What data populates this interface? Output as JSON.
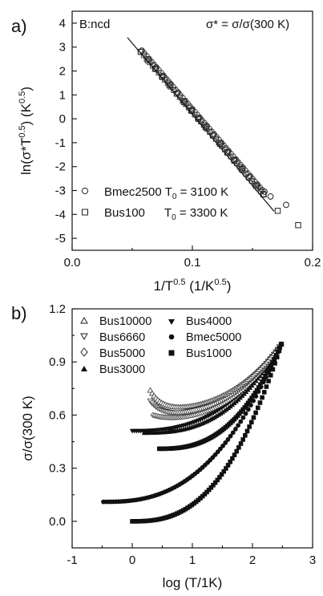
{
  "chart_data": [
    {
      "type": "scatter",
      "panel_label": "a)",
      "corner_text": "B:ncd",
      "formula_text": "σ* = σ/σ(300 K)",
      "xlabel_main": "1/T",
      "xlabel_sup": "0.5",
      "xlabel_rest": " (1/K",
      "xlabel_sup2": "0.5",
      "xlabel_end": ")",
      "ylabel_main": "ln(σ*T",
      "ylabel_sup": "0.5",
      "ylabel_rest": ") (K",
      "ylabel_sup2": "0.5",
      "ylabel_end": ")",
      "xlim": [
        0.0,
        0.2
      ],
      "ylim": [
        -5.5,
        4.5
      ],
      "x_ticks": [
        "0.0",
        "0.1",
        "0.2"
      ],
      "y_ticks": [
        "4",
        "3",
        "2",
        "1",
        "0",
        "-1",
        "-2",
        "-3",
        "-4",
        "-5"
      ],
      "fit_line": {
        "x": [
          0.046,
          0.168
        ],
        "y": [
          3.4,
          -3.87
        ]
      },
      "series": [
        {
          "name": "Bmec2500",
          "t0_label": "T",
          "t0_sub": "0",
          "t0_value": " = 3100 K",
          "marker": "circle",
          "x": [
            0.058,
            0.064,
            0.07,
            0.076,
            0.082,
            0.088,
            0.094,
            0.1,
            0.106,
            0.112,
            0.118,
            0.124,
            0.13,
            0.136,
            0.142,
            0.148,
            0.154,
            0.16,
            0.165,
            0.178
          ],
          "y": [
            2.85,
            2.5,
            2.15,
            1.8,
            1.45,
            1.1,
            0.75,
            0.4,
            0.05,
            -0.3,
            -0.65,
            -1.0,
            -1.35,
            -1.7,
            -2.05,
            -2.4,
            -2.75,
            -3.05,
            -3.25,
            -3.6
          ]
        },
        {
          "name": "Bus100",
          "t0_label": "T",
          "t0_sub": "0",
          "t0_value": " = 3300 K",
          "marker": "square",
          "x": [
            0.057,
            0.063,
            0.069,
            0.075,
            0.081,
            0.087,
            0.093,
            0.099,
            0.105,
            0.111,
            0.117,
            0.123,
            0.129,
            0.135,
            0.141,
            0.147,
            0.153,
            0.159,
            0.171,
            0.188
          ],
          "y": [
            2.8,
            2.45,
            2.1,
            1.75,
            1.4,
            1.05,
            0.7,
            0.35,
            0.0,
            -0.35,
            -0.7,
            -1.05,
            -1.4,
            -1.75,
            -2.1,
            -2.45,
            -2.8,
            -3.15,
            -3.85,
            -4.45
          ]
        }
      ]
    },
    {
      "type": "scatter",
      "panel_label": "b)",
      "xlabel": "log (T/1K)",
      "ylabel": "σ/σ(300 K)",
      "xlim": [
        -1,
        3
      ],
      "ylim": [
        -0.15,
        1.2
      ],
      "x_ticks": [
        "-1",
        "0",
        "1",
        "2",
        "3"
      ],
      "y_ticks": [
        "1.2",
        "0.9",
        "0.6",
        "0.3",
        "0.0"
      ],
      "series": [
        {
          "name": "Bus10000",
          "marker": "triangle-up-open",
          "x_start": 0.3,
          "x_end": 2.48,
          "y_start": 0.74,
          "y_min": 0.63,
          "y_end": 1.0
        },
        {
          "name": "Bus6660",
          "marker": "triangle-down-open",
          "x_start": 0.3,
          "x_end": 2.48,
          "y_start": 0.68,
          "y_min": 0.6,
          "y_end": 1.0
        },
        {
          "name": "Bus5000",
          "marker": "diamond-open",
          "x_start": 0.35,
          "x_end": 2.48,
          "y_start": 0.6,
          "y_min": 0.58,
          "y_end": 1.0
        },
        {
          "name": "Bus3000",
          "marker": "triangle-up",
          "x_start": 0.2,
          "x_end": 2.48,
          "y_start": 0.5,
          "y_min": 0.5,
          "y_end": 1.0
        },
        {
          "name": "Bus4000",
          "marker": "triangle-down",
          "x_start": 0.0,
          "x_end": 2.48,
          "y_start": 0.51,
          "y_min": 0.51,
          "y_end": 1.0
        },
        {
          "name": "Bmec5000",
          "marker": "circle-filled",
          "x_start": -0.48,
          "x_end": 2.48,
          "y_start": 0.11,
          "y_min": 0.11,
          "y_end": 1.0
        },
        {
          "name": "Bus1000",
          "marker": "square-filled",
          "x_start": 0.0,
          "x_end": 2.48,
          "y_start": 0.0,
          "y_min": 0.0,
          "y_end": 1.0
        }
      ],
      "extra_curves": [
        {
          "x_start": 0.45,
          "x_end": 2.48,
          "y_start": 0.41,
          "y_end": 1.0
        }
      ]
    }
  ]
}
